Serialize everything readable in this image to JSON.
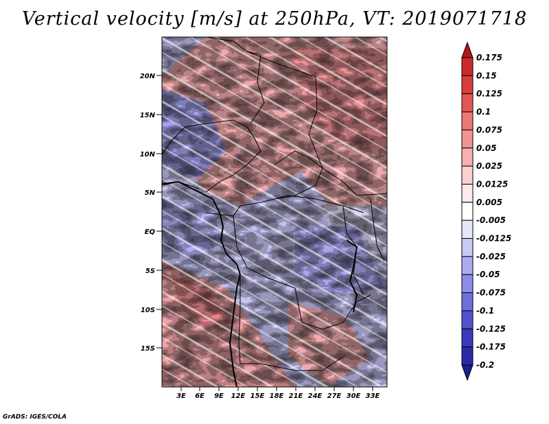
{
  "title": "Vertical velocity [m/s] at 250hPa, VT: 2019071718",
  "footer": "GrADS: IGES/COLA",
  "map": {
    "lat_labels": [
      "20N",
      "15N",
      "10N",
      "5N",
      "EQ",
      "5S",
      "10S",
      "15S"
    ],
    "lon_labels": [
      "3E",
      "6E",
      "9E",
      "12E",
      "15E",
      "18E",
      "21E",
      "24E",
      "27E",
      "30E",
      "33E"
    ]
  },
  "colorbar": {
    "labels": [
      "0.175",
      "0.15",
      "0.125",
      "0.1",
      "0.075",
      "0.05",
      "0.025",
      "0.0125",
      "0.005",
      "-0.005",
      "-0.0125",
      "-0.025",
      "-0.05",
      "-0.075",
      "-0.1",
      "-0.125",
      "-0.175",
      "-0.2"
    ],
    "colors": [
      "#b2181b",
      "#c92a2a",
      "#d83c3c",
      "#e45757",
      "#ec7777",
      "#f29393",
      "#f6b1b1",
      "#fad0d0",
      "#fdeaea",
      "#ffffff",
      "#e6e6fb",
      "#c9c9f5",
      "#ababf0",
      "#8d8de8",
      "#6f6fdc",
      "#5252cf",
      "#3a3abd",
      "#2a2aa8",
      "#1d1d8e"
    ]
  }
}
